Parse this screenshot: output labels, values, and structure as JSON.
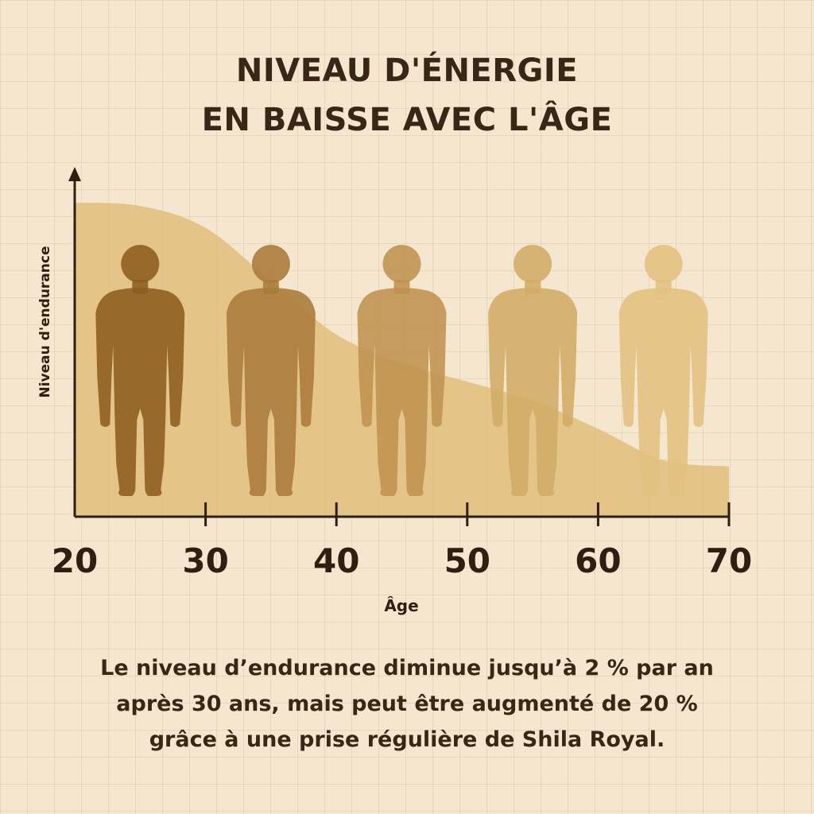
{
  "title_lines": [
    "NIVEAU D'ÉNERGIE",
    "EN BAISSE AVEC L'ÂGE"
  ],
  "caption_lines": [
    "Le niveau d’endurance diminue jusqu’à 2 % par an",
    "après 30 ans,  mais peut être augmenté de 20 %",
    "grâce à une prise régulière de Shila Royal."
  ],
  "colors": {
    "background": "#f5e7cf",
    "area_fill": "#e0bd7c",
    "axis": "#2f1e12",
    "figures": [
      "#8c5d1f",
      "#aa7a3a",
      "#bf9250",
      "#d2ab66",
      "#e2c07f"
    ]
  },
  "chart_data": {
    "type": "area",
    "xlabel": "Âge",
    "ylabel": "Niveau d'endurance",
    "x_ticks": [
      20,
      30,
      40,
      50,
      60,
      70
    ],
    "x": [
      20,
      25,
      30,
      35,
      40,
      45,
      50,
      55,
      60,
      65,
      70
    ],
    "values": [
      100,
      99,
      92,
      75,
      58,
      49,
      43,
      37,
      28,
      18,
      16
    ],
    "xlim": [
      20,
      70
    ],
    "ylim": [
      0,
      100
    ],
    "grid": true,
    "legend": "none",
    "figures_at_age": [
      25,
      35,
      45,
      55,
      65
    ]
  }
}
